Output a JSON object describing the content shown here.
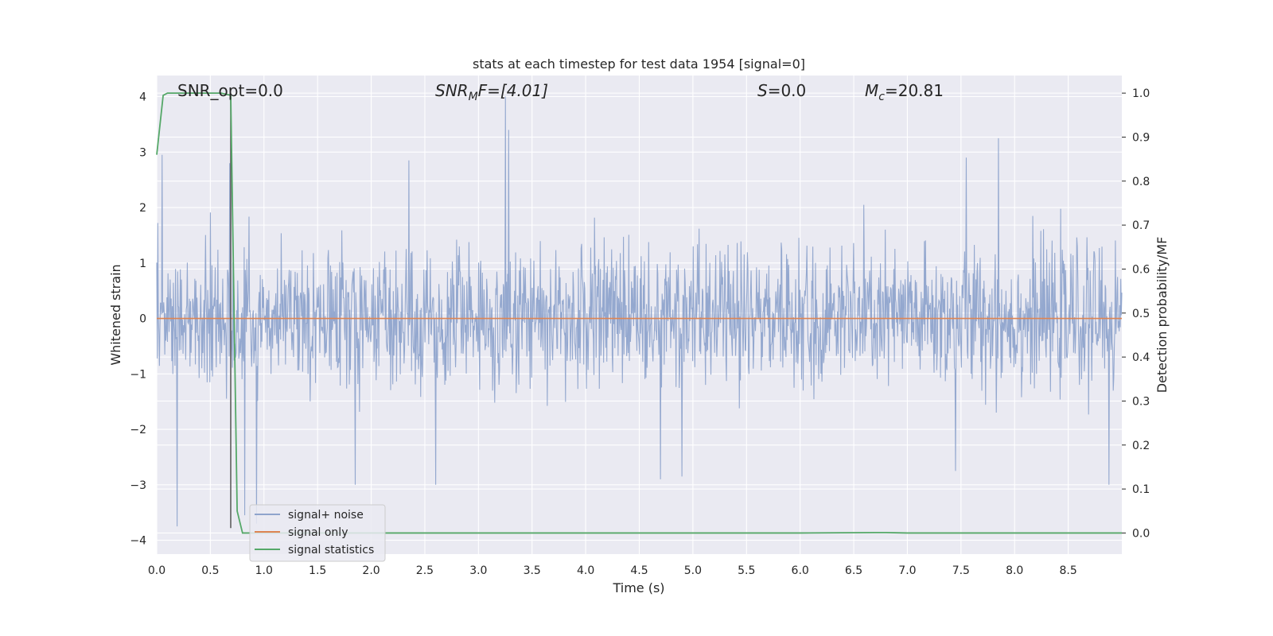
{
  "chart_data": {
    "type": "line",
    "title": "stats at each timestep for test data 1954 [signal=0]",
    "xlabel": "Time (s)",
    "ylabel": "Whitened strain",
    "ylabel_right": "Detection probability/MF",
    "xlim": [
      0.0,
      9.0
    ],
    "ylim": [
      -4.25,
      4.38
    ],
    "ylim_right": [
      -0.048,
      1.04
    ],
    "grid": true,
    "legend_position": "lower-left",
    "x_ticks": [
      "0.0",
      "0.5",
      "1.0",
      "1.5",
      "2.0",
      "2.5",
      "3.0",
      "3.5",
      "4.0",
      "4.5",
      "5.0",
      "5.5",
      "6.0",
      "6.5",
      "7.0",
      "7.5",
      "8.0",
      "8.5"
    ],
    "y_ticks_left": [
      "4",
      "3",
      "2",
      "1",
      "0",
      "−1",
      "−2",
      "−3",
      "−4"
    ],
    "y_ticks_right": [
      "1.0",
      "0.9",
      "0.8",
      "0.7",
      "0.6",
      "0.5",
      "0.4",
      "0.3",
      "0.2",
      "0.1",
      "0.0"
    ],
    "annotations": {
      "snr_opt": "SNR_opt=0.0",
      "snr_mf_italic": "SNR",
      "snr_mf_sub": "M",
      "snr_mf_rest": "F=[4.01]",
      "s_italic": "S",
      "s_rest": "=0.0",
      "mc_italic": "M",
      "mc_sub": "c",
      "mc_rest": "=20.81"
    },
    "marker_line_x": 0.69,
    "series": [
      {
        "name": "signal+ noise",
        "color": "#8fa4cc",
        "noise_std": 0.62,
        "sample_count": 1800,
        "peaks": [
          {
            "x": 0.05,
            "y": 2.95
          },
          {
            "x": 0.19,
            "y": -3.75
          },
          {
            "x": 0.68,
            "y": 2.8
          },
          {
            "x": 0.82,
            "y": -3.55
          },
          {
            "x": 0.93,
            "y": -3.7
          },
          {
            "x": 1.85,
            "y": -3.0
          },
          {
            "x": 2.35,
            "y": 2.85
          },
          {
            "x": 2.6,
            "y": -3.0
          },
          {
            "x": 3.25,
            "y": 4.0
          },
          {
            "x": 3.28,
            "y": 3.4
          },
          {
            "x": 4.7,
            "y": -2.9
          },
          {
            "x": 4.9,
            "y": -2.85
          },
          {
            "x": 7.45,
            "y": -2.75
          },
          {
            "x": 7.55,
            "y": 2.9
          },
          {
            "x": 7.85,
            "y": 3.25
          },
          {
            "x": 8.42,
            "y": -0.35
          },
          {
            "x": 8.88,
            "y": -3.0
          }
        ]
      },
      {
        "name": "signal only",
        "color": "#dd8452",
        "points": [
          [
            0.0,
            0.0
          ],
          [
            9.0,
            0.0
          ]
        ]
      },
      {
        "name": "signal statistics",
        "color": "#55a868",
        "axis": "right",
        "points": [
          [
            0.0,
            0.86
          ],
          [
            0.06,
            0.995
          ],
          [
            0.1,
            1.0
          ],
          [
            0.2,
            1.0
          ],
          [
            0.3,
            1.0
          ],
          [
            0.4,
            1.0
          ],
          [
            0.5,
            1.0
          ],
          [
            0.6,
            1.0
          ],
          [
            0.69,
            0.995
          ],
          [
            0.75,
            0.05
          ],
          [
            0.8,
            0.0
          ],
          [
            1.0,
            0.0
          ],
          [
            2.0,
            0.0
          ],
          [
            3.0,
            0.0
          ],
          [
            4.0,
            0.0
          ],
          [
            5.0,
            0.0
          ],
          [
            6.0,
            0.0
          ],
          [
            6.7,
            0.001
          ],
          [
            6.8,
            0.001
          ],
          [
            7.0,
            0.0
          ],
          [
            8.0,
            0.0
          ],
          [
            9.0,
            0.0
          ]
        ]
      }
    ]
  }
}
